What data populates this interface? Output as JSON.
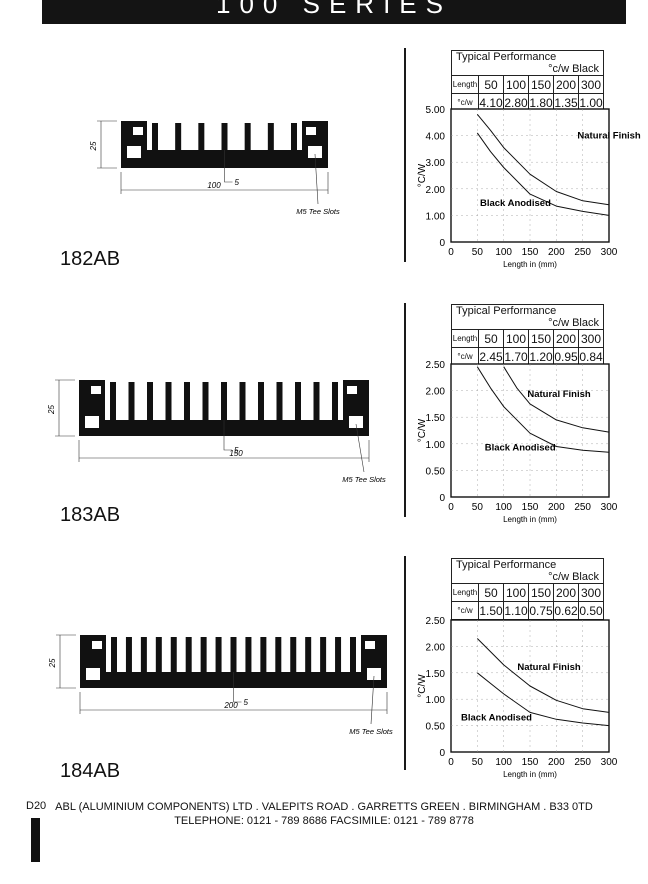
{
  "header": {
    "title": "100 SERIES"
  },
  "units": {
    "perf_title": "Typical Performance",
    "perf_unit": "°c/w Black",
    "row_length": "Length",
    "row_cw": "°c/w",
    "slot_label": "M5 Tee Slots",
    "fin_label": "5",
    "height_label": "25"
  },
  "products": [
    {
      "model": "182AB",
      "width_label": "100",
      "lengths": [
        "50",
        "100",
        "150",
        "200",
        "300"
      ],
      "values": [
        "4.10",
        "2.80",
        "1.80",
        "1.35",
        "1.00"
      ]
    },
    {
      "model": "183AB",
      "width_label": "150",
      "lengths": [
        "50",
        "100",
        "150",
        "200",
        "300"
      ],
      "values": [
        "2.45",
        "1.70",
        "1.20",
        "0.95",
        "0.84"
      ]
    },
    {
      "model": "184AB",
      "width_label": "200",
      "lengths": [
        "50",
        "100",
        "150",
        "200",
        "300"
      ],
      "values": [
        "1.50",
        "1.10",
        "0.75",
        "0.62",
        "0.50"
      ]
    }
  ],
  "chart_data": [
    {
      "type": "line",
      "ylabel": "°C/W",
      "xlabel": "Length in (mm)",
      "xlim": [
        0,
        300
      ],
      "ylim": [
        0,
        5
      ],
      "xticks": [
        "0",
        "50",
        "100",
        "150",
        "200",
        "250",
        "300"
      ],
      "yticks": [
        "0",
        "1.00",
        "2.00",
        "3.00",
        "4.00",
        "5.00"
      ],
      "series": [
        {
          "name": "Natural Finish",
          "x": [
            50,
            75,
            100,
            150,
            200,
            250,
            300
          ],
          "y": [
            4.8,
            4.2,
            3.55,
            2.55,
            1.9,
            1.55,
            1.4
          ]
        },
        {
          "name": "Black Anodised",
          "x": [
            50,
            75,
            100,
            150,
            200,
            250,
            300
          ],
          "y": [
            4.1,
            3.4,
            2.8,
            1.8,
            1.35,
            1.15,
            1.0
          ]
        }
      ]
    },
    {
      "type": "line",
      "ylabel": "°C/W",
      "xlabel": "Length in (mm)",
      "xlim": [
        0,
        300
      ],
      "ylim": [
        0,
        2.5
      ],
      "xticks": [
        "0",
        "50",
        "100",
        "150",
        "200",
        "250",
        "300"
      ],
      "yticks": [
        "0",
        "0.50",
        "1.00",
        "1.50",
        "2.00",
        "2.50"
      ],
      "series": [
        {
          "name": "Natural Finish",
          "x": [
            100,
            125,
            150,
            200,
            250,
            300
          ],
          "y": [
            2.45,
            2.05,
            1.75,
            1.45,
            1.3,
            1.22
          ]
        },
        {
          "name": "Black Anodised",
          "x": [
            50,
            75,
            100,
            150,
            200,
            250,
            300
          ],
          "y": [
            2.45,
            2.05,
            1.7,
            1.2,
            0.95,
            0.88,
            0.84
          ]
        }
      ]
    },
    {
      "type": "line",
      "ylabel": "°C/W",
      "xlabel": "Length in (mm)",
      "xlim": [
        0,
        300
      ],
      "ylim": [
        0,
        2.5
      ],
      "xticks": [
        "0",
        "50",
        "100",
        "150",
        "200",
        "250",
        "300"
      ],
      "yticks": [
        "0",
        "0.50",
        "1.00",
        "1.50",
        "2.00",
        "2.50"
      ],
      "series": [
        {
          "name": "Natural Finish",
          "x": [
            50,
            100,
            150,
            200,
            250,
            300
          ],
          "y": [
            2.15,
            1.65,
            1.25,
            0.98,
            0.82,
            0.75
          ]
        },
        {
          "name": "Black Anodised",
          "x": [
            50,
            75,
            100,
            150,
            200,
            250,
            300
          ],
          "y": [
            1.5,
            1.3,
            1.1,
            0.75,
            0.62,
            0.55,
            0.5
          ]
        }
      ]
    }
  ],
  "footer": {
    "page_code": "D20",
    "line1": "ABL (ALUMINIUM COMPONENTS) LTD . VALEPITS ROAD . GARRETTS GREEN . BIRMINGHAM . B33 0TD",
    "line2": "TELEPHONE: 0121 - 789 8686   FACSIMILE: 0121 - 789 8778"
  }
}
